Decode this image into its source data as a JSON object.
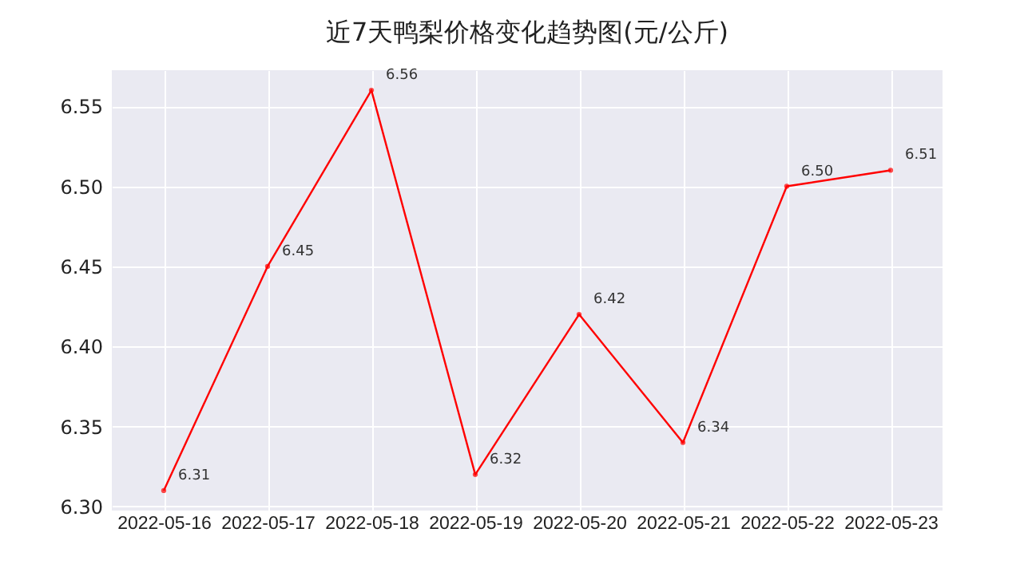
{
  "chart_data": {
    "type": "line",
    "title": "近7天鸭梨价格变化趋势图(元/公斤)",
    "categories": [
      "2022-05-16",
      "2022-05-17",
      "2022-05-18",
      "2022-05-19",
      "2022-05-20",
      "2022-05-21",
      "2022-05-22",
      "2022-05-23"
    ],
    "series": [
      {
        "color": "#ff0000",
        "values": [
          6.31,
          6.45,
          6.56,
          6.32,
          6.42,
          6.34,
          6.5,
          6.51
        ],
        "value_labels": [
          "6.31",
          "6.45",
          "6.56",
          "6.32",
          "6.42",
          "6.34",
          "6.50",
          "6.51"
        ]
      }
    ],
    "ylim": [
      6.2975,
      6.5725
    ],
    "yticks": [
      {
        "value": 6.3,
        "label": "6.30"
      },
      {
        "value": 6.35,
        "label": "6.35"
      },
      {
        "value": 6.4,
        "label": "6.40"
      },
      {
        "value": 6.45,
        "label": "6.45"
      },
      {
        "value": 6.5,
        "label": "6.50"
      },
      {
        "value": 6.55,
        "label": "6.55"
      }
    ],
    "grid": true,
    "marker": "circle",
    "line_style": "solid",
    "legend": false
  }
}
